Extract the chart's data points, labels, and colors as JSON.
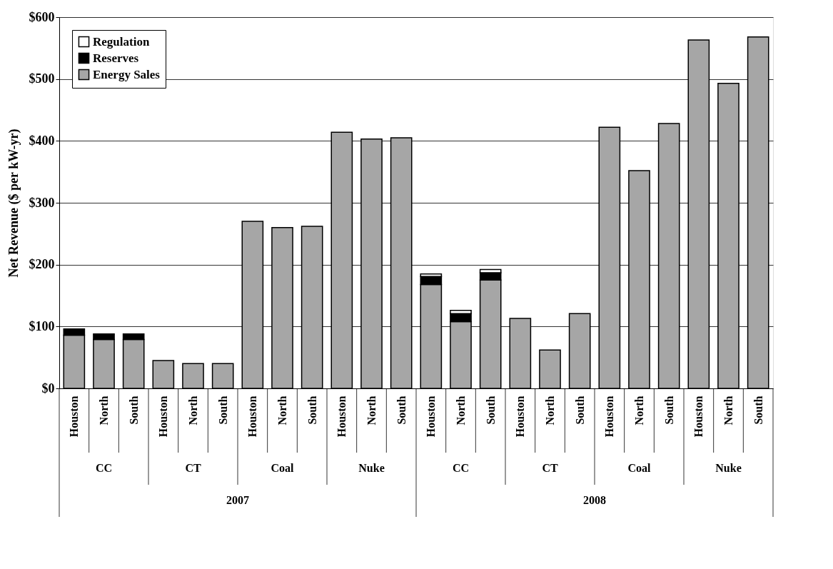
{
  "chart_data": {
    "type": "bar",
    "stacked": true,
    "ylabel": "Net Revenue ($ per kW-yr)",
    "categories": [
      "Houston",
      "North",
      "South",
      "Houston",
      "North",
      "South",
      "Houston",
      "North",
      "South",
      "Houston",
      "North",
      "South",
      "Houston",
      "North",
      "South",
      "Houston",
      "North",
      "South",
      "Houston",
      "North",
      "South",
      "Houston",
      "North",
      "South"
    ],
    "series": [
      {
        "name": "Energy Sales",
        "color": "#a6a6a6",
        "values": [
          86,
          79,
          79,
          45,
          40,
          40,
          270,
          260,
          262,
          414,
          403,
          405,
          168,
          108,
          175,
          113,
          62,
          121,
          422,
          352,
          428,
          563,
          493,
          568
        ]
      },
      {
        "name": "Reserves",
        "color": "#000000",
        "values": [
          10,
          9,
          9,
          0,
          0,
          0,
          0,
          0,
          0,
          0,
          0,
          0,
          13,
          13,
          12,
          0,
          0,
          0,
          0,
          0,
          0,
          0,
          0,
          0
        ]
      },
      {
        "name": "Regulation",
        "color": "#ffffff",
        "values": [
          0,
          0,
          0,
          0,
          0,
          0,
          0,
          0,
          0,
          0,
          0,
          0,
          4,
          5,
          5,
          0,
          0,
          0,
          0,
          0,
          0,
          0,
          0,
          0
        ]
      }
    ],
    "ylim": [
      0,
      600
    ],
    "yticks": [
      {
        "value": 0,
        "label": "$0"
      },
      {
        "value": 100,
        "label": "$100"
      },
      {
        "value": 200,
        "label": "$200"
      },
      {
        "value": 300,
        "label": "$300"
      },
      {
        "value": 400,
        "label": "$400"
      },
      {
        "value": 500,
        "label": "$500"
      },
      {
        "value": 600,
        "label": "$600"
      }
    ],
    "grid": "y",
    "legend": "top left",
    "annotations": [
      "CC",
      "CT",
      "Coal",
      "Nuke",
      "CC",
      "CT",
      "Coal",
      "Nuke",
      "2007",
      "2008"
    ]
  }
}
